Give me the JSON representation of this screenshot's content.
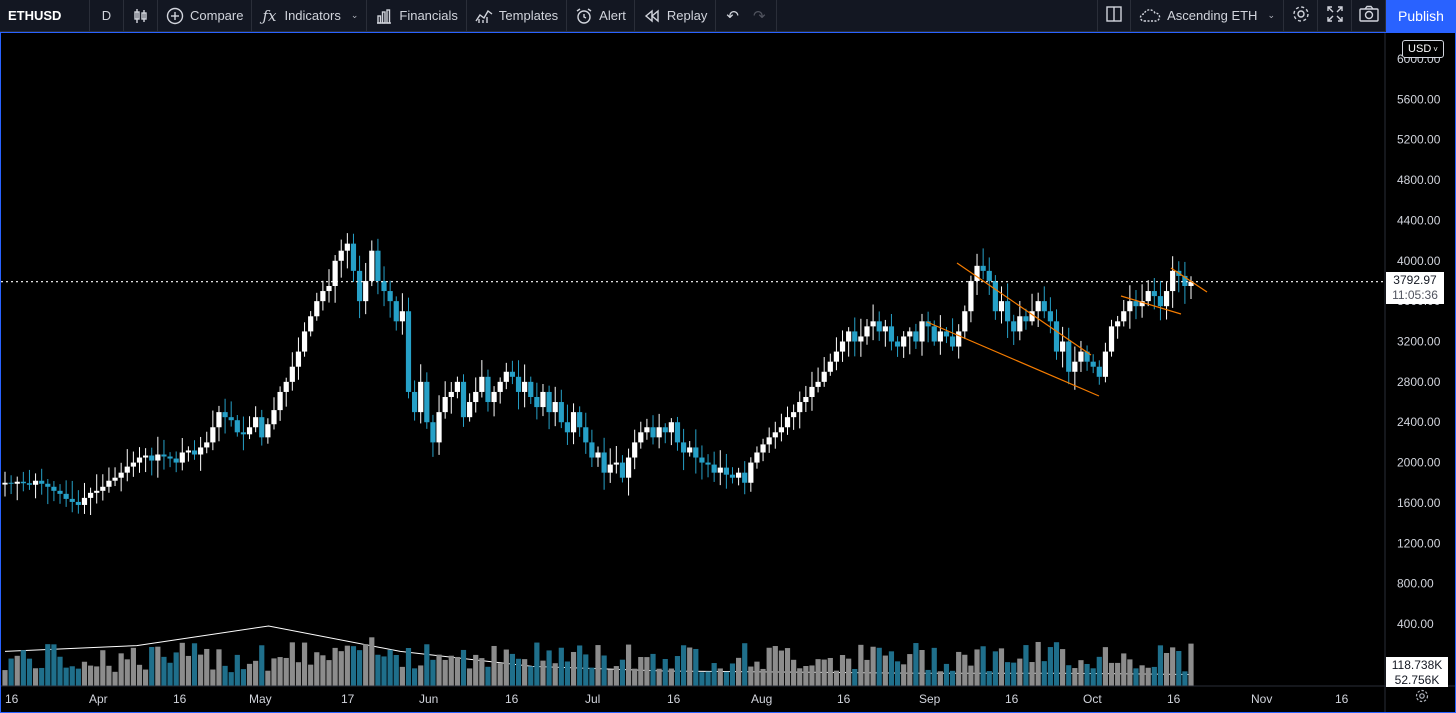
{
  "toolbar": {
    "symbol": "ETHUSD",
    "interval": "D",
    "compare_label": "Compare",
    "indicators_label": "Indicators",
    "financials_label": "Financials",
    "templates_label": "Templates",
    "alert_label": "Alert",
    "replay_label": "Replay",
    "layout_name": "Ascending ETH",
    "publish_label": "Publish"
  },
  "chart": {
    "currency_badge": "USD",
    "last_price": "3792.97",
    "countdown": "11:05:36",
    "volume_last": "118.738K",
    "volume_ma": "52.756K",
    "accent_color": "#2962ff",
    "up_color": "#ffffff",
    "down_color": "#26a0c7",
    "pattern_color": "#f57c00"
  },
  "chart_data": {
    "type": "candlestick",
    "title": "ETHUSD",
    "interval": "D",
    "y_ticks": [
      "6000.00",
      "5600.00",
      "5200.00",
      "4800.00",
      "4400.00",
      "4000.00",
      "3600.00",
      "3200.00",
      "2800.00",
      "2400.00",
      "2000.00",
      "1600.00",
      "1200.00",
      "800.00",
      "400.00"
    ],
    "x_ticks": [
      "16",
      "Apr",
      "16",
      "May",
      "17",
      "Jun",
      "16",
      "Jul",
      "16",
      "Aug",
      "16",
      "Sep",
      "16",
      "Oct",
      "16",
      "Nov",
      "16"
    ],
    "ylim": [
      0,
      6100
    ],
    "grid": false,
    "last_price": 3792.97,
    "closes": [
      [
        1800,
        1790,
        1810,
        1795,
        1780,
        1820,
        1790,
        1760,
        1720,
        1690,
        1640,
        1610,
        1580,
        1650,
        1700,
        1720,
        1760,
        1820,
        1850,
        1900,
        1960,
        2000,
        2050,
        2070,
        2020,
        2080,
        2060,
        2040,
        2000,
        2100,
        2120,
        2080,
        2150,
        2200,
        2350,
        2500,
        2450,
        2420,
        2300,
        2280,
        2350,
        2450,
        2250,
        2380,
        2520,
        2700,
        2800,
        2950,
        3100,
        3300,
        3450,
        3600,
        3700,
        3750,
        4000,
        4100,
        4170,
        3900,
        3600,
        3800,
        4100,
        3800,
        3700,
        3600,
        3400
      ],
      [
        3500,
        2700,
        2500,
        2800,
        2400,
        2200,
        2500,
        2650,
        2700,
        2800,
        2450,
        2600,
        2700,
        2850,
        2600,
        2700,
        2800,
        2900,
        2850,
        2700,
        2800,
        2650,
        2550,
        2700,
        2500,
        2600,
        2400,
        2300,
        2500,
        2350,
        2200,
        2050,
        2100,
        1900,
        1980,
        2000,
        1850,
        2050,
        2200,
        2300,
        2350,
        2250,
        2350,
        2300,
        2400,
        2200,
        2100,
        2150,
        2050,
        2000,
        1980,
        1900,
        1950,
        1880,
        1850,
        1900,
        1800,
        2000,
        2100,
        2180,
        2250,
        2300,
        2350,
        2450,
        2500,
        2600,
        2650,
        2750,
        2800,
        2900,
        3000,
        3100,
        3200,
        3300,
        3200,
        3250,
        3350,
        3400,
        3300,
        3350,
        3200,
        3150,
        3250,
        3300,
        3200,
        3400,
        3350,
        3200,
        3300,
        3250,
        3150,
        3300,
        3500,
        3800,
        3950,
        3900,
        3800,
        3500,
        3600,
        3400,
        3300,
        3450,
        3400,
        3500,
        3600,
        3500,
        3400,
        3100,
        3200,
        2900,
        3000,
        3100,
        3000,
        2950,
        2850,
        3100,
        3350,
        3400,
        3500,
        3600,
        3550,
        3600,
        3700,
        3650,
        3550,
        3700,
        3900,
        3850,
        3750,
        3792.97
      ]
    ],
    "volume_ma_approx": [
      300,
      350,
      520,
      300,
      170,
      130,
      120,
      110,
      110,
      100
    ]
  }
}
